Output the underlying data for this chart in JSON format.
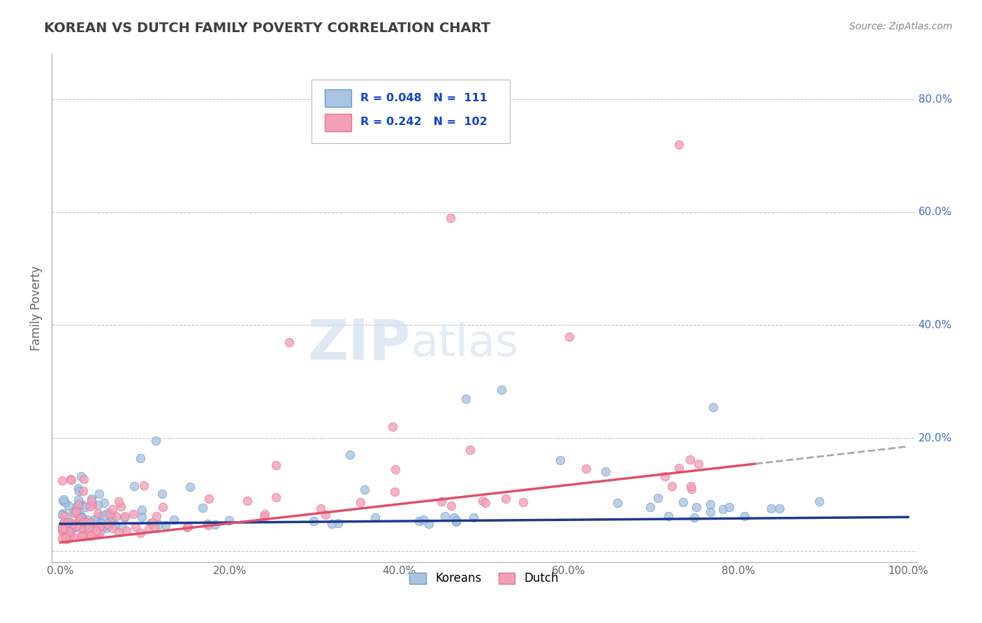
{
  "title": "KOREAN VS DUTCH FAMILY POVERTY CORRELATION CHART",
  "source_text": "Source: ZipAtlas.com",
  "ylabel": "Family Poverty",
  "watermark_zip": "ZIP",
  "watermark_atlas": "atlas",
  "xlim": [
    -0.01,
    1.01
  ],
  "ylim": [
    -0.02,
    0.88
  ],
  "xticks": [
    0.0,
    0.2,
    0.4,
    0.6,
    0.8,
    1.0
  ],
  "yticks": [
    0.0,
    0.2,
    0.4,
    0.6,
    0.8
  ],
  "xticklabels": [
    "0.0%",
    "20.0%",
    "40.0%",
    "60.0%",
    "80.0%",
    "100.0%"
  ],
  "yticklabels_right": [
    "",
    "20.0%",
    "40.0%",
    "60.0%",
    "80.0%"
  ],
  "korean_R": 0.048,
  "korean_N": 111,
  "dutch_R": 0.242,
  "dutch_N": 102,
  "korean_dot_color": "#aac4e2",
  "dutch_dot_color": "#f2a0b8",
  "korean_edge_color": "#6699cc",
  "dutch_edge_color": "#e87090",
  "korean_line_color": "#1a3a8c",
  "dutch_line_color": "#e0506a",
  "dutch_dash_color": "#aaaaaa",
  "background_color": "#ffffff",
  "grid_color": "#c8c8c8",
  "title_color": "#404040",
  "source_color": "#888888",
  "right_tick_color": "#4472c4",
  "legend_text_color": "#1144cc"
}
